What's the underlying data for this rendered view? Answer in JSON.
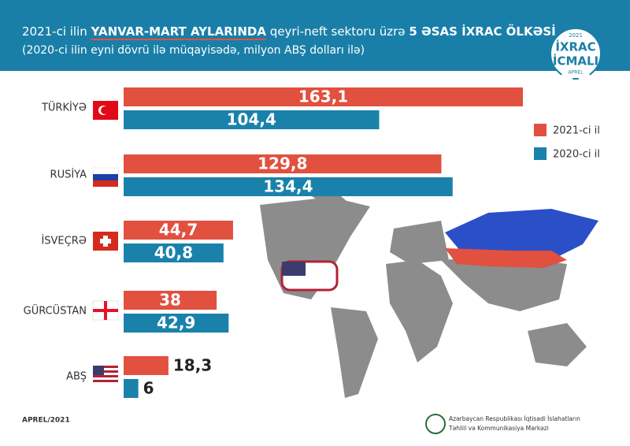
{
  "chart_data": {
    "type": "hbar",
    "title_parts": [
      "2021-ci ilin",
      "YANVAR-MART AYLARINDA",
      "qeyri-neft sektoru üzrə",
      "5 ƏSAS İXRAC ÖLKƏSİ"
    ],
    "subtitle": "(2020-ci ilin eyni dövrü ilə müqayisədə, milyon ABŞ dolları ilə)",
    "badge": {
      "year": "2021",
      "line1": "İXRAC",
      "line2": "İCMALI",
      "month": "APREL"
    },
    "categories": [
      "TÜRKİYƏ",
      "RUSİYA",
      "İSVEÇRƏ",
      "GÜRCÜSTAN",
      "ABŞ"
    ],
    "series": [
      {
        "name": "2021-ci il",
        "color": "#e2503f",
        "values": [
          163.1,
          129.8,
          44.7,
          38,
          18.3
        ],
        "value_labels": [
          "163,1",
          "129,8",
          "44,7",
          "38",
          "18,3"
        ]
      },
      {
        "name": "2020-ci il",
        "color": "#1a82aa",
        "values": [
          104.4,
          134.4,
          40.8,
          42.9,
          6
        ],
        "value_labels": [
          "104,4",
          "134,4",
          "40,8",
          "42,9",
          "6"
        ]
      }
    ],
    "legend": "right",
    "footer": {
      "date": "APREL/2021",
      "org_line1": "Azərbaycan Respublikası İqtisadi İslahatların",
      "org_line2": "Təhlili və Kommunikasiya Mərkəzi"
    }
  }
}
